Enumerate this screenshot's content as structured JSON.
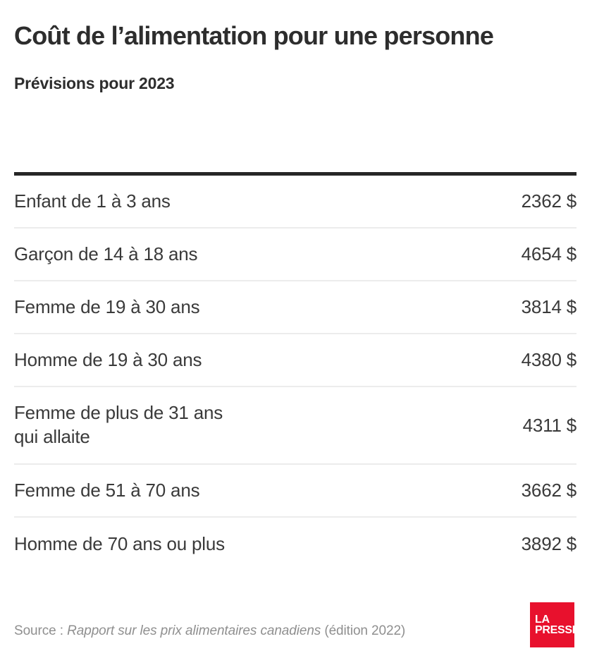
{
  "header": {
    "title": "Coût de l’alimentation pour une personne",
    "subtitle": "Prévisions pour 2023"
  },
  "chart_data": {
    "type": "table",
    "title": "Coût de l’alimentation pour une personne",
    "subtitle": "Prévisions pour 2023",
    "unit": "$",
    "rows": [
      {
        "label": "Enfant de 1 à 3 ans",
        "value": 2362,
        "display": "2362 $"
      },
      {
        "label": "Garçon de 14 à 18 ans",
        "value": 4654,
        "display": "4654 $"
      },
      {
        "label": "Femme de 19 à 30 ans",
        "value": 3814,
        "display": "3814 $"
      },
      {
        "label": "Homme de 19 à 30 ans",
        "value": 4380,
        "display": "4380 $"
      },
      {
        "label": "Femme de plus de 31 ans\nqui allaite",
        "value": 4311,
        "display": "4311 $"
      },
      {
        "label": "Femme de 51 à 70 ans",
        "value": 3662,
        "display": "3662 $"
      },
      {
        "label": "Homme de 70 ans ou plus",
        "value": 3892,
        "display": "3892 $"
      }
    ]
  },
  "footer": {
    "source_prefix": "Source : ",
    "source_title": "Rapport sur les prix alimentaires canadiens",
    "source_suffix": " (édition 2022)",
    "logo_line1": "LA",
    "logo_line2": "PRESSE"
  },
  "colors": {
    "brand_red": "#e8112d",
    "text_dark": "#2d2d2d",
    "text_body": "#3a3a3a",
    "text_gray": "#8f8f8f",
    "rule_dark": "#262626",
    "row_separator": "#ececec",
    "background": "#ffffff"
  }
}
